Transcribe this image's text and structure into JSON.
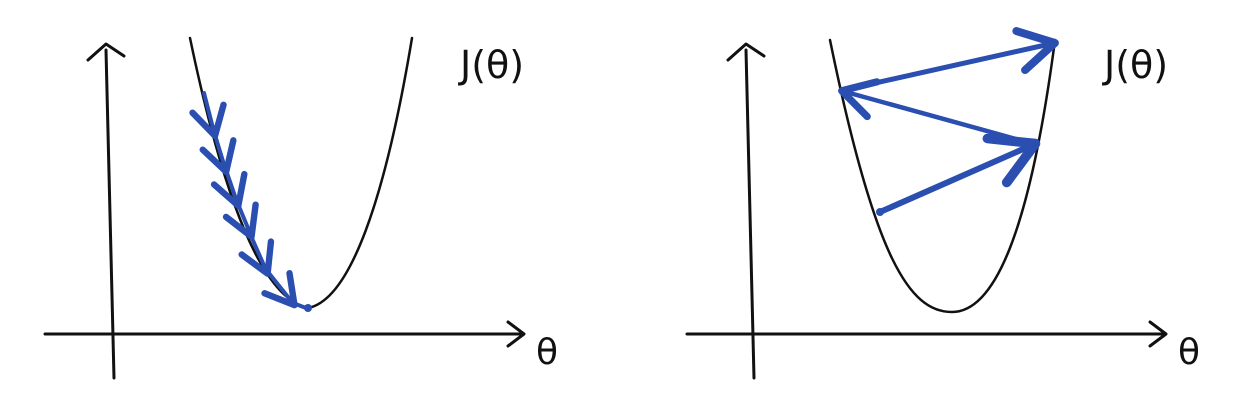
{
  "colors": {
    "ink": "#111111",
    "steps": "#2a4fb0"
  },
  "panels": [
    {
      "name": "small-learning-rate",
      "y_label": "J(θ)",
      "x_label": "θ",
      "steps_shown": 7
    },
    {
      "name": "large-learning-rate",
      "y_label": "J(θ)",
      "x_label": "θ",
      "steps_shown": 3
    }
  ]
}
